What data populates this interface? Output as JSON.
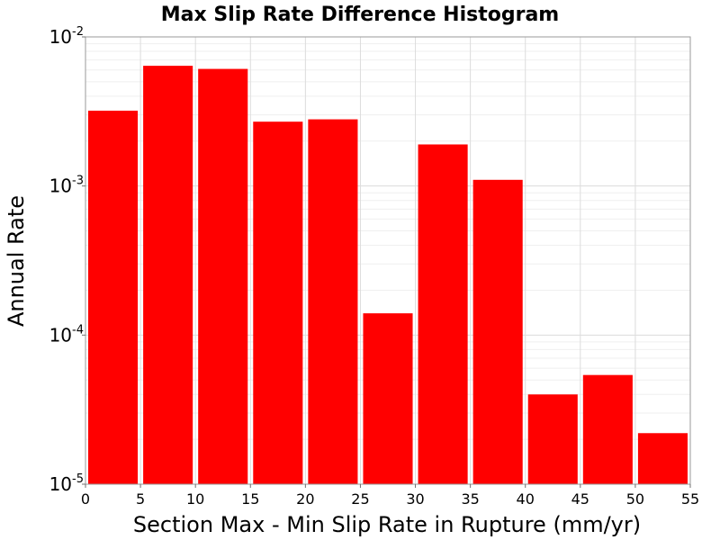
{
  "chart_data": {
    "type": "bar",
    "title": "Max Slip Rate Difference Histogram",
    "xlabel": "Section Max - Min Slip Rate in Rupture (mm/yr)",
    "ylabel": "Annual Rate",
    "x_scale": "linear",
    "y_scale": "log",
    "xlim": [
      0,
      55
    ],
    "ylim": [
      1e-05,
      0.01
    ],
    "bin_width": 5,
    "bins": [
      {
        "x0": 0,
        "x1": 5,
        "value": 0.0032
      },
      {
        "x0": 5,
        "x1": 10,
        "value": 0.0064
      },
      {
        "x0": 10,
        "x1": 15,
        "value": 0.0061
      },
      {
        "x0": 15,
        "x1": 20,
        "value": 0.0027
      },
      {
        "x0": 20,
        "x1": 25,
        "value": 0.0028
      },
      {
        "x0": 25,
        "x1": 30,
        "value": 0.00014
      },
      {
        "x0": 30,
        "x1": 35,
        "value": 0.0019
      },
      {
        "x0": 35,
        "x1": 40,
        "value": 0.0011
      },
      {
        "x0": 40,
        "x1": 45,
        "value": 4e-05
      },
      {
        "x0": 45,
        "x1": 50,
        "value": 5.4e-05
      },
      {
        "x0": 50,
        "x1": 55,
        "value": 2.2e-05
      }
    ],
    "x_ticks": [
      "0",
      "5",
      "10",
      "15",
      "20",
      "25",
      "30",
      "35",
      "40",
      "45",
      "50",
      "55"
    ],
    "y_ticks": [
      {
        "base": "10",
        "exp": "-2",
        "value": 0.01
      },
      {
        "base": "10",
        "exp": "-3",
        "value": 0.001
      },
      {
        "base": "10",
        "exp": "-4",
        "value": 0.0001
      },
      {
        "base": "10",
        "exp": "-5",
        "value": 1e-05
      }
    ],
    "bar_color": "#ff0000",
    "grid": true,
    "legend": "none"
  }
}
